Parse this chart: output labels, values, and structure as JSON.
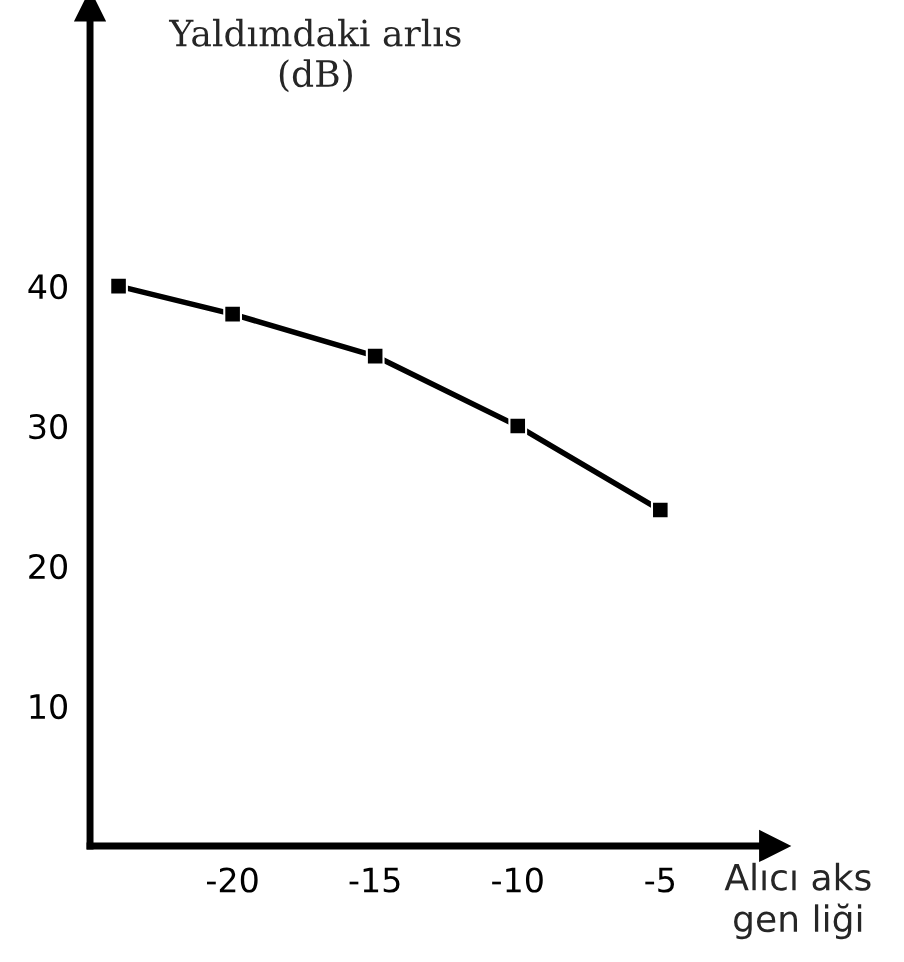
{
  "chart_data": {
    "type": "line",
    "xlabel": "Alıcı aks\ngen liği",
    "ylabel": "Yaldımdaki arlıs\n(dB)",
    "x": [
      -24,
      -20,
      -15,
      -10,
      -5
    ],
    "series": [
      {
        "color": "#000000",
        "values": [
          40,
          38,
          35,
          30,
          24
        ]
      }
    ],
    "xlim": [
      -25,
      -1
    ],
    "ylim": [
      0,
      60
    ],
    "xticks": [
      -20,
      -15,
      -10,
      -5
    ],
    "yticks": [
      10,
      20,
      30,
      40
    ],
    "marker": "square",
    "line_style": "solid",
    "grid": false,
    "legend": false
  }
}
